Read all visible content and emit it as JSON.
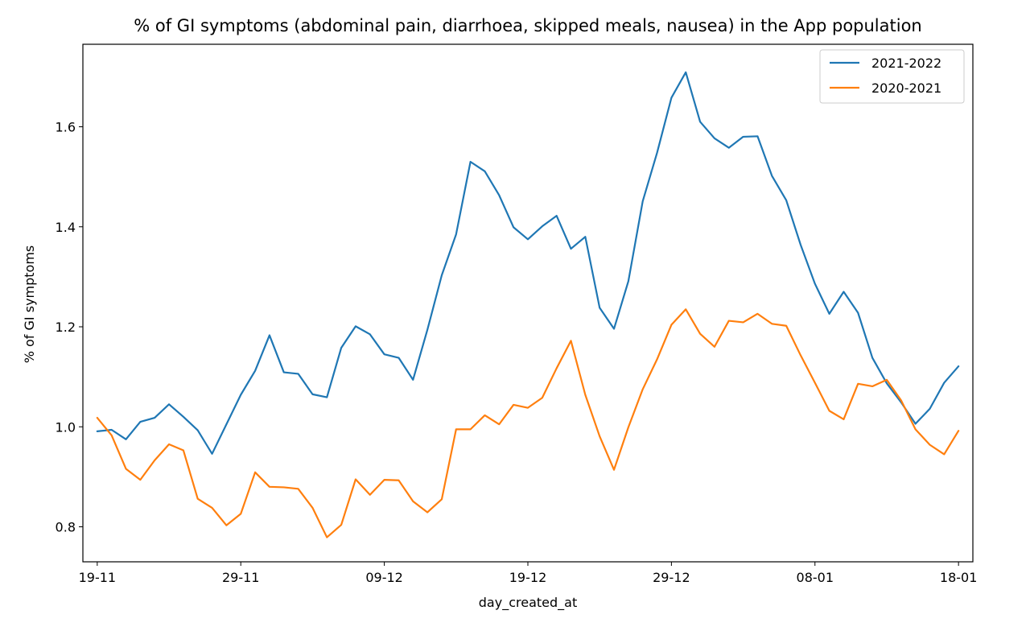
{
  "chart_data": {
    "type": "line",
    "title": "% of GI symptoms (abdominal pain, diarrhoea, skipped meals, nausea) in the App population",
    "xlabel": "day_created_at",
    "ylabel": "% of GI symptoms",
    "xlim": [
      "2021-11-18",
      "2022-01-19"
    ],
    "ylim": [
      0.73,
      1.765
    ],
    "x_ticks": [
      {
        "date": "2021-11-19",
        "label": "19-11"
      },
      {
        "date": "2021-11-29",
        "label": "29-11"
      },
      {
        "date": "2021-12-09",
        "label": "09-12"
      },
      {
        "date": "2021-12-19",
        "label": "19-12"
      },
      {
        "date": "2021-12-29",
        "label": "29-12"
      },
      {
        "date": "2022-01-08",
        "label": "08-01"
      },
      {
        "date": "2022-01-18",
        "label": "18-01"
      }
    ],
    "y_ticks": [
      0.8,
      1.0,
      1.2,
      1.4,
      1.6
    ],
    "y_tick_labels": [
      "0.8",
      "1.0",
      "1.2",
      "1.4",
      "1.6"
    ],
    "grid": false,
    "legend_position": "top-right",
    "x": [
      "2021-11-19",
      "2021-11-20",
      "2021-11-21",
      "2021-11-22",
      "2021-11-23",
      "2021-11-24",
      "2021-11-25",
      "2021-11-26",
      "2021-11-27",
      "2021-11-28",
      "2021-11-29",
      "2021-11-30",
      "2021-12-01",
      "2021-12-02",
      "2021-12-03",
      "2021-12-04",
      "2021-12-05",
      "2021-12-06",
      "2021-12-07",
      "2021-12-08",
      "2021-12-09",
      "2021-12-10",
      "2021-12-11",
      "2021-12-12",
      "2021-12-13",
      "2021-12-14",
      "2021-12-15",
      "2021-12-16",
      "2021-12-17",
      "2021-12-18",
      "2021-12-19",
      "2021-12-20",
      "2021-12-21",
      "2021-12-22",
      "2021-12-23",
      "2021-12-24",
      "2021-12-25",
      "2021-12-26",
      "2021-12-27",
      "2021-12-28",
      "2021-12-29",
      "2021-12-30",
      "2021-12-31",
      "2022-01-01",
      "2022-01-02",
      "2022-01-03",
      "2022-01-04",
      "2022-01-05",
      "2022-01-06",
      "2022-01-07",
      "2022-01-08",
      "2022-01-09",
      "2022-01-10",
      "2022-01-11",
      "2022-01-12",
      "2022-01-13",
      "2022-01-14",
      "2022-01-15",
      "2022-01-16",
      "2022-01-17",
      "2022-01-18"
    ],
    "series": [
      {
        "name": "2021-2022",
        "color": "#1f77b4",
        "values": [
          0.991,
          0.994,
          0.975,
          1.01,
          1.018,
          1.045,
          1.02,
          0.993,
          0.946,
          1.005,
          1.064,
          1.112,
          1.183,
          1.109,
          1.106,
          1.065,
          1.059,
          1.158,
          1.201,
          1.185,
          1.145,
          1.138,
          1.094,
          1.194,
          1.303,
          1.385,
          1.53,
          1.511,
          1.463,
          1.399,
          1.375,
          1.401,
          1.422,
          1.356,
          1.38,
          1.238,
          1.196,
          1.291,
          1.451,
          1.548,
          1.658,
          1.709,
          1.61,
          1.577,
          1.558,
          1.58,
          1.581,
          1.502,
          1.453,
          1.364,
          1.286,
          1.226,
          1.27,
          1.228,
          1.138,
          1.087,
          1.049,
          1.006,
          1.036,
          1.088,
          1.121
        ]
      },
      {
        "name": "2020-2021",
        "color": "#ff7f0e",
        "values": [
          1.018,
          0.983,
          0.916,
          0.894,
          0.933,
          0.965,
          0.953,
          0.856,
          0.838,
          0.803,
          0.826,
          0.909,
          0.88,
          0.879,
          0.876,
          0.838,
          0.779,
          0.804,
          0.895,
          0.864,
          0.894,
          0.893,
          0.851,
          0.829,
          0.855,
          0.995,
          0.995,
          1.023,
          1.005,
          1.044,
          1.038,
          1.058,
          1.117,
          1.172,
          1.064,
          0.981,
          0.914,
          0.999,
          1.075,
          1.135,
          1.204,
          1.235,
          1.186,
          1.16,
          1.212,
          1.209,
          1.226,
          1.206,
          1.202,
          1.143,
          1.088,
          1.032,
          1.015,
          1.086,
          1.081,
          1.094,
          1.053,
          0.995,
          0.964,
          0.945,
          0.992
        ]
      }
    ]
  }
}
